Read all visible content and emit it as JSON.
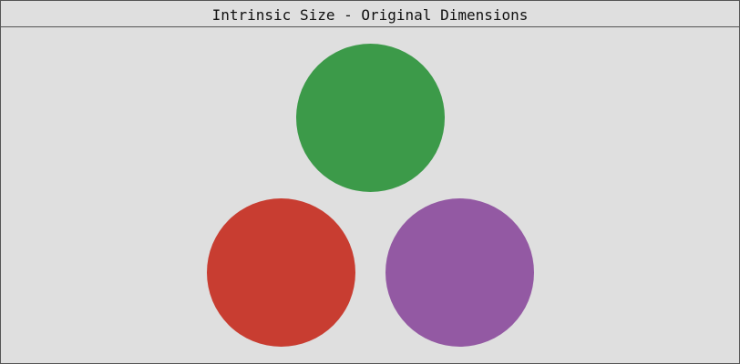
{
  "window": {
    "title": "Intrinsic Size - Original Dimensions"
  },
  "circles": [
    {
      "name": "green-circle",
      "color": "#3c9a49"
    },
    {
      "name": "red-circle",
      "color": "#c83d31"
    },
    {
      "name": "purple-circle",
      "color": "#9359a3"
    }
  ]
}
